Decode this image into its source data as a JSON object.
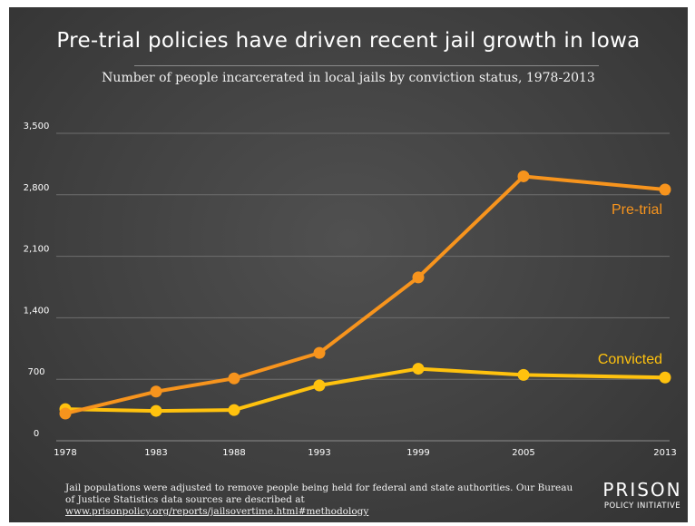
{
  "chart_data": {
    "type": "line",
    "title": "Pre-trial policies have driven recent jail growth in Iowa",
    "subtitle": "Number of people incarcerated in local jails by conviction status, 1978-2013",
    "x": [
      1978,
      1983,
      1988,
      1993,
      1999,
      2005,
      2013
    ],
    "x_tick_labels": [
      "1978",
      "1983",
      "1988",
      "1993",
      "1999",
      "2005",
      "2013"
    ],
    "y_ticks": [
      0,
      700,
      1400,
      2100,
      2800,
      3500
    ],
    "y_tick_labels": [
      "0",
      "700",
      "1,400",
      "2,100",
      "2,800",
      "3,500"
    ],
    "ylim": [
      0,
      3500
    ],
    "grid": true,
    "series": [
      {
        "name": "Pre-trial",
        "color": "#f7941d",
        "values": [
          310,
          560,
          710,
          1000,
          1860,
          3010,
          2860
        ]
      },
      {
        "name": "Convicted",
        "color": "#ffc20e",
        "values": [
          360,
          340,
          350,
          630,
          820,
          750,
          720
        ]
      }
    ]
  },
  "footer": {
    "text": "Jail populations were adjusted to remove people being held for federal and state authorities. Our Bureau of Justice Statistics data sources are described at ",
    "link": "www.prisonpolicy.org/reports/jailsovertime.html#methodology"
  },
  "logo": {
    "line1": "PRISON",
    "line2": "POLICY INITIATIVE"
  }
}
